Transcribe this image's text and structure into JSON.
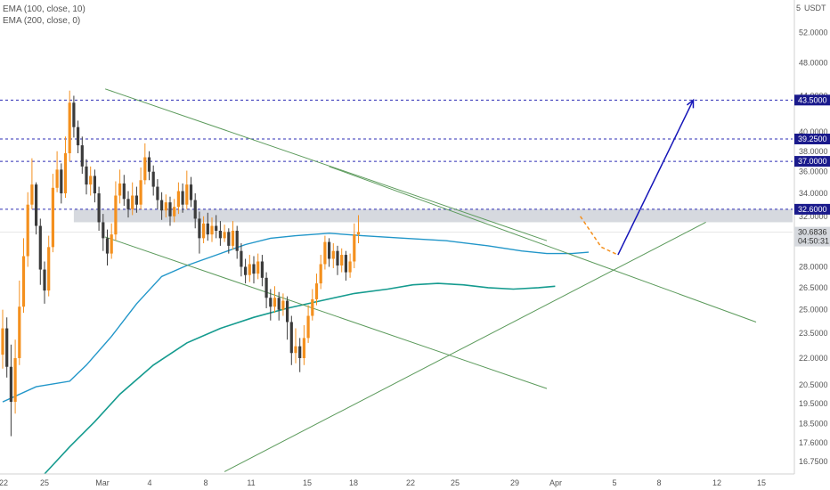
{
  "legend": {
    "ema100": "EMA (100, close, 10)",
    "ema200": "EMA (200, close, 0)"
  },
  "chart_data": {
    "type": "candlestick",
    "currency": "USDT",
    "scale": "log",
    "ylim": [
      16.2,
      56
    ],
    "price_ticks": [
      "52.0000",
      "48.0000",
      "44.0000",
      "40.0000",
      "38.0000",
      "36.0000",
      "34.0000",
      "32.0000",
      "28.0000",
      "26.5000",
      "25.0000",
      "23.5000",
      "22.0000",
      "20.5000",
      "19.5000",
      "18.5000",
      "17.6000",
      "16.7500"
    ],
    "top_tick": "5",
    "x_ticks": [
      "22",
      "25",
      "Mar",
      "4",
      "8",
      "11",
      "15",
      "18",
      "22",
      "25",
      "29",
      "Apr",
      "5",
      "8",
      "12",
      "15"
    ],
    "current_price": {
      "value": "30.6836",
      "countdown": "04:50:31"
    },
    "levels": [
      {
        "value": 43.5,
        "label": "43.5000"
      },
      {
        "value": 39.25,
        "label": "39.2500"
      },
      {
        "value": 37.0,
        "label": "37.0000"
      },
      {
        "value": 32.6,
        "label": "32.6000"
      }
    ],
    "resistance_zone": [
      31.5,
      32.6
    ],
    "colors": {
      "up": "#f4901e",
      "down": "#3b3b3b",
      "ema100": "#2196c9",
      "ema200": "#159b8f",
      "trendline": "#5b9a5b",
      "level": "#2d2db5",
      "projection": "#1414b8",
      "zone": "#c8ccd4",
      "tag_bg": "#1a1a8c",
      "current_tag": "#d6d9de"
    },
    "candles": [
      [
        22.2,
        23.8,
        25.0,
        21.4
      ],
      [
        23.8,
        21.5,
        24.5,
        20.9
      ],
      [
        21.5,
        19.6,
        22.8,
        17.9
      ],
      [
        19.6,
        22.0,
        23.1,
        19.0
      ],
      [
        22.0,
        25.2,
        27.0,
        21.6
      ],
      [
        25.2,
        28.8,
        30.2,
        24.8
      ],
      [
        28.8,
        33.0,
        34.1,
        28.0
      ],
      [
        33.0,
        34.8,
        37.3,
        32.6
      ],
      [
        34.8,
        31.2,
        35.0,
        30.5
      ],
      [
        31.2,
        27.8,
        31.8,
        26.7
      ],
      [
        27.8,
        26.3,
        28.4,
        25.4
      ],
      [
        26.3,
        29.5,
        30.4,
        25.9
      ],
      [
        29.5,
        34.5,
        35.8,
        29.1
      ],
      [
        34.5,
        36.2,
        38.0,
        34.1
      ],
      [
        36.2,
        34.0,
        36.8,
        33.1
      ],
      [
        34.0,
        37.8,
        39.5,
        33.6
      ],
      [
        37.8,
        43.2,
        44.6,
        37.0
      ],
      [
        43.2,
        40.5,
        44.0,
        39.4
      ],
      [
        40.5,
        38.6,
        41.2,
        37.8
      ],
      [
        38.6,
        36.5,
        39.5,
        35.8
      ],
      [
        36.5,
        34.8,
        37.2,
        33.9
      ],
      [
        34.8,
        35.6,
        36.5,
        33.8
      ],
      [
        35.6,
        34.0,
        36.2,
        33.2
      ],
      [
        34.0,
        31.5,
        34.6,
        30.8
      ],
      [
        31.5,
        30.2,
        32.2,
        29.2
      ],
      [
        30.2,
        29.0,
        30.9,
        28.1
      ],
      [
        29.0,
        30.5,
        31.4,
        28.6
      ],
      [
        30.5,
        33.8,
        35.1,
        30.0
      ],
      [
        33.8,
        34.9,
        36.2,
        33.1
      ],
      [
        34.9,
        33.5,
        35.7,
        32.9
      ],
      [
        33.5,
        32.6,
        34.2,
        31.9
      ],
      [
        32.6,
        33.8,
        35.0,
        32.1
      ],
      [
        33.8,
        33.0,
        34.6,
        32.3
      ],
      [
        33.0,
        35.2,
        36.4,
        32.6
      ],
      [
        35.2,
        37.4,
        38.8,
        34.8
      ],
      [
        37.4,
        36.0,
        38.0,
        35.2
      ],
      [
        36.0,
        34.6,
        36.6,
        33.8
      ],
      [
        34.6,
        33.4,
        35.3,
        32.6
      ],
      [
        33.4,
        32.5,
        34.1,
        31.7
      ],
      [
        32.5,
        33.2,
        33.9,
        31.9
      ],
      [
        33.2,
        32.0,
        33.7,
        31.2
      ],
      [
        32.0,
        32.8,
        33.5,
        31.5
      ],
      [
        32.8,
        34.2,
        35.0,
        32.2
      ],
      [
        34.2,
        33.0,
        34.9,
        32.3
      ],
      [
        33.0,
        34.8,
        36.1,
        32.6
      ],
      [
        34.8,
        33.4,
        35.5,
        32.8
      ],
      [
        33.4,
        31.8,
        34.0,
        31.0
      ],
      [
        31.8,
        30.2,
        32.4,
        29.0
      ],
      [
        30.2,
        31.4,
        32.0,
        29.8
      ],
      [
        31.4,
        30.5,
        32.3,
        30.0
      ],
      [
        30.5,
        31.2,
        31.9,
        29.9
      ],
      [
        31.2,
        30.8,
        32.1,
        30.2
      ],
      [
        30.8,
        30.2,
        31.6,
        29.6
      ],
      [
        30.2,
        30.7,
        31.3,
        29.9
      ],
      [
        30.7,
        29.6,
        31.0,
        29.0
      ],
      [
        29.6,
        30.8,
        31.6,
        29.3
      ],
      [
        30.8,
        29.2,
        31.2,
        28.6
      ],
      [
        29.2,
        28.0,
        29.8,
        27.3
      ],
      [
        28.0,
        27.4,
        28.6,
        26.8
      ],
      [
        27.4,
        28.2,
        28.9,
        26.9
      ],
      [
        28.2,
        27.5,
        28.8,
        26.8
      ],
      [
        27.5,
        28.4,
        29.0,
        27.1
      ],
      [
        28.4,
        27.2,
        28.9,
        26.6
      ],
      [
        27.2,
        25.8,
        27.6,
        25.1
      ],
      [
        25.8,
        25.2,
        26.4,
        24.3
      ],
      [
        25.2,
        25.8,
        26.6,
        24.8
      ],
      [
        25.8,
        25.0,
        26.2,
        24.3
      ],
      [
        25.0,
        25.6,
        26.1,
        24.6
      ],
      [
        25.6,
        24.2,
        25.9,
        23.1
      ],
      [
        24.2,
        22.3,
        24.6,
        21.6
      ],
      [
        22.3,
        22.7,
        23.8,
        21.7
      ],
      [
        22.7,
        22.0,
        23.2,
        21.2
      ],
      [
        22.0,
        23.2,
        24.0,
        21.6
      ],
      [
        23.2,
        24.6,
        25.3,
        22.9
      ],
      [
        24.6,
        25.7,
        26.4,
        24.3
      ],
      [
        25.7,
        26.8,
        27.5,
        25.3
      ],
      [
        26.8,
        28.2,
        28.9,
        26.4
      ],
      [
        28.2,
        29.9,
        30.4,
        27.8
      ],
      [
        29.9,
        28.6,
        30.2,
        28.0
      ],
      [
        28.6,
        29.2,
        29.8,
        27.9
      ],
      [
        29.2,
        28.1,
        29.6,
        27.4
      ],
      [
        28.1,
        28.9,
        29.4,
        27.6
      ],
      [
        28.9,
        27.6,
        29.2,
        27.0
      ],
      [
        27.6,
        28.4,
        29.0,
        27.2
      ],
      [
        28.4,
        30.5,
        31.4,
        27.9
      ],
      [
        30.5,
        30.7,
        32.1,
        29.8
      ]
    ],
    "ema100": [
      [
        0,
        19.6
      ],
      [
        8,
        20.4
      ],
      [
        16,
        20.7
      ],
      [
        20,
        21.6
      ],
      [
        26,
        23.3
      ],
      [
        32,
        25.4
      ],
      [
        38,
        27.3
      ],
      [
        44,
        28.1
      ],
      [
        52,
        29.0
      ],
      [
        58,
        29.7
      ],
      [
        64,
        30.2
      ],
      [
        70,
        30.4
      ],
      [
        78,
        30.6
      ],
      [
        86,
        30.4
      ],
      [
        96,
        30.2
      ],
      [
        106,
        30.0
      ],
      [
        116,
        29.6
      ],
      [
        124,
        29.2
      ],
      [
        130,
        29.0
      ],
      [
        136,
        29.0
      ],
      [
        140,
        29.1
      ]
    ],
    "ema200": [
      [
        10,
        16.2
      ],
      [
        16,
        17.4
      ],
      [
        22,
        18.6
      ],
      [
        28,
        20.0
      ],
      [
        36,
        21.6
      ],
      [
        44,
        22.9
      ],
      [
        52,
        23.8
      ],
      [
        60,
        24.5
      ],
      [
        68,
        25.1
      ],
      [
        76,
        25.6
      ],
      [
        84,
        26.1
      ],
      [
        92,
        26.4
      ],
      [
        98,
        26.7
      ],
      [
        104,
        26.8
      ],
      [
        110,
        26.7
      ],
      [
        116,
        26.5
      ],
      [
        122,
        26.4
      ],
      [
        128,
        26.5
      ],
      [
        132,
        26.6
      ]
    ],
    "trendlines": [
      [
        [
          24.5,
          44.8
        ],
        [
          130,
          30.0
        ]
      ],
      [
        [
          24.5,
          30.3
        ],
        [
          130,
          20.3
        ]
      ],
      [
        [
          53,
          16.3
        ],
        [
          168,
          31.5
        ]
      ],
      [
        [
          78,
          36.5
        ],
        [
          180,
          24.2
        ]
      ]
    ],
    "projection_dashed": [
      [
        138,
        32.0
      ],
      [
        143,
        29.5
      ],
      [
        147,
        28.9
      ]
    ],
    "projection_arrow": [
      [
        147,
        28.9
      ],
      [
        165,
        43.5
      ]
    ]
  }
}
